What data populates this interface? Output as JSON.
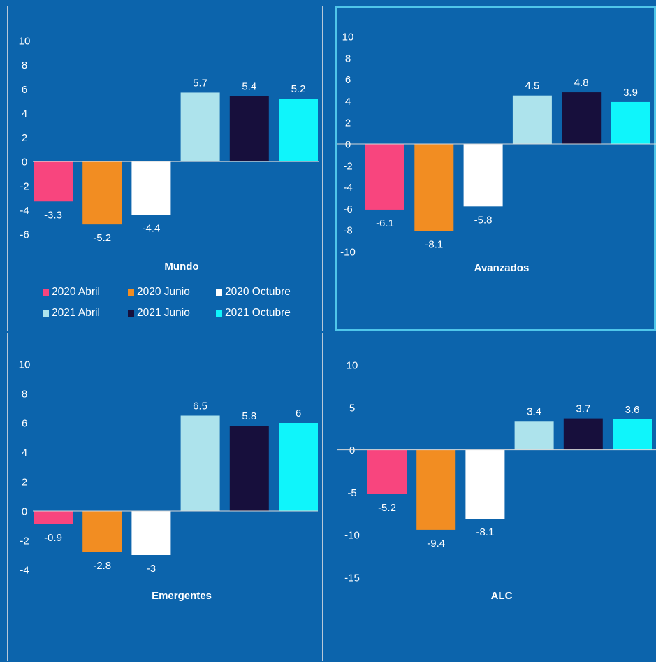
{
  "colors": {
    "background": "#0c64ac",
    "series": [
      "#f8457e",
      "#f28d22",
      "#ffffff",
      "#ade3ec",
      "#170f3c",
      "#0ff5fb"
    ]
  },
  "legend": [
    {
      "label": "2020 Abril",
      "color": "#f8457e"
    },
    {
      "label": "2020 Junio",
      "color": "#f28d22"
    },
    {
      "label": "2020 Octubre",
      "color": "#ffffff"
    },
    {
      "label": "2021 Abril",
      "color": "#ade3ec"
    },
    {
      "label": "2021 Junio",
      "color": "#170f3c"
    },
    {
      "label": "2021 Octubre",
      "color": "#0ff5fb"
    }
  ],
  "chart_data": [
    {
      "type": "bar",
      "title": "Mundo",
      "categories": [
        "2020 Abril",
        "2020 Junio",
        "2020 Octubre",
        "2021 Abril",
        "2021 Junio",
        "2021 Octubre"
      ],
      "values": [
        -3.3,
        -5.2,
        -4.4,
        5.7,
        5.4,
        5.2
      ],
      "value_labels": [
        "-3.3",
        "-5.2",
        "-4.4",
        "5.7",
        "5.4",
        "5.2"
      ],
      "yticks": [
        -6,
        -4,
        -2,
        0,
        2,
        4,
        6,
        8,
        10
      ],
      "ytick_labels": [
        "-6",
        "-4",
        "-2",
        "0",
        "2",
        "4",
        "6",
        "8",
        "10"
      ],
      "ylim": [
        -6,
        10
      ],
      "legend": "bottom",
      "grid": false
    },
    {
      "type": "bar",
      "title": "Avanzados",
      "categories": [
        "2020 Abril",
        "2020 Junio",
        "2020 Octubre",
        "2021 Abril",
        "2021 Junio",
        "2021 Octubre"
      ],
      "values": [
        -6.1,
        -8.1,
        -5.8,
        4.5,
        4.8,
        3.9
      ],
      "value_labels": [
        "-6.1",
        "-8.1",
        "-5.8",
        "4.5",
        "4.8",
        "3.9"
      ],
      "yticks": [
        -10,
        -8,
        -6,
        -4,
        -2,
        0,
        2,
        4,
        6,
        8,
        10
      ],
      "ytick_labels": [
        "-10",
        "-8",
        "-6",
        "-4",
        "-2",
        "0",
        "2",
        "4",
        "6",
        "8",
        "10"
      ],
      "ylim": [
        -10,
        10
      ],
      "grid": false
    },
    {
      "type": "bar",
      "title": "Emergentes",
      "categories": [
        "2020 Abril",
        "2020 Junio",
        "2020 Octubre",
        "2021 Abril",
        "2021 Junio",
        "2021 Octubre"
      ],
      "values": [
        -0.9,
        -2.8,
        -3,
        6.5,
        5.8,
        6
      ],
      "value_labels": [
        "-0.9",
        "-2.8",
        "-3",
        "6.5",
        "5.8",
        "6"
      ],
      "yticks": [
        -4,
        -2,
        0,
        2,
        4,
        6,
        8,
        10
      ],
      "ytick_labels": [
        "-4",
        "-2",
        "0",
        "2",
        "4",
        "6",
        "8",
        "10"
      ],
      "ylim": [
        -4,
        10
      ],
      "grid": false
    },
    {
      "type": "bar",
      "title": "ALC",
      "categories": [
        "2020 Abril",
        "2020 Junio",
        "2020 Octubre",
        "2021 Abril",
        "2021 Junio",
        "2021 Octubre"
      ],
      "values": [
        -5.2,
        -9.4,
        -8.1,
        3.4,
        3.7,
        3.6
      ],
      "value_labels": [
        "-5.2",
        "-9.4",
        "-8.1",
        "3.4",
        "3.7",
        "3.6"
      ],
      "yticks": [
        -15,
        -10,
        -5,
        0,
        5,
        10
      ],
      "ytick_labels": [
        "-15",
        "-10",
        "-5",
        "0",
        "5",
        "10"
      ],
      "ylim": [
        -15,
        10
      ],
      "grid": false
    }
  ]
}
